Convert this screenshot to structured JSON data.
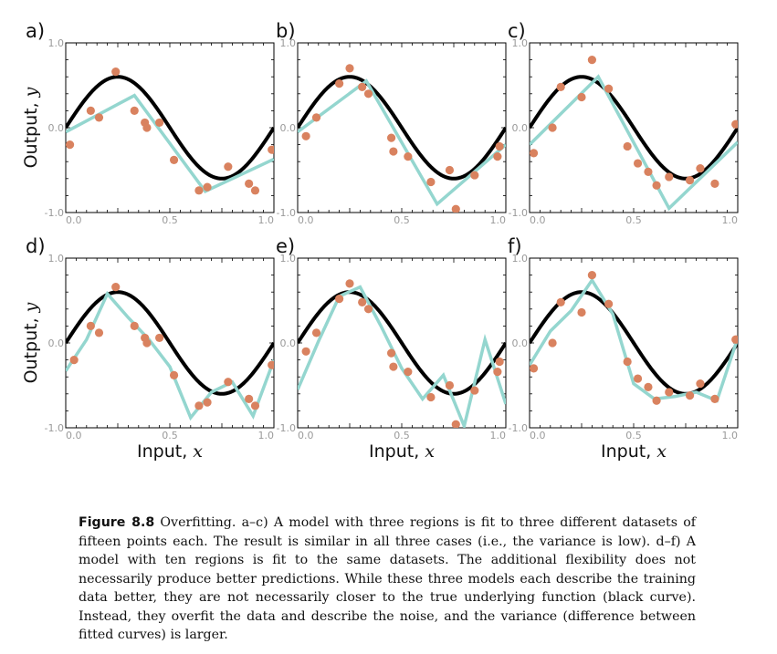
{
  "figure": {
    "panel_labels": [
      "a)",
      "b)",
      "c)",
      "d)",
      "e)",
      "f)"
    ],
    "y_axis_label": "Output,",
    "y_axis_var": "y",
    "x_axis_label": "Input,",
    "x_axis_var": "x",
    "x_ticks": [
      "0.0",
      "0.5",
      "1.0"
    ],
    "y_ticks": [
      "1.0",
      "0.0",
      "-1.0"
    ],
    "colors": {
      "data": "#d9825f",
      "fit": "#94d6cf",
      "true": "#000000"
    }
  },
  "chart_data": [
    {
      "type": "scatter",
      "panel": "a)",
      "xlim": [
        0,
        1
      ],
      "ylim": [
        -1,
        1
      ],
      "true_function": "0.6*sin(2*pi*x)",
      "points": [
        [
          0.02,
          -0.2
        ],
        [
          0.12,
          0.2
        ],
        [
          0.16,
          0.12
        ],
        [
          0.24,
          0.66
        ],
        [
          0.33,
          0.2
        ],
        [
          0.38,
          0.06
        ],
        [
          0.39,
          0.0
        ],
        [
          0.45,
          0.06
        ],
        [
          0.52,
          -0.38
        ],
        [
          0.64,
          -0.74
        ],
        [
          0.68,
          -0.7
        ],
        [
          0.78,
          -0.46
        ],
        [
          0.88,
          -0.66
        ],
        [
          0.91,
          -0.74
        ],
        [
          0.99,
          -0.26
        ]
      ],
      "fit": [
        [
          0,
          -0.05
        ],
        [
          0.33,
          0.38
        ],
        [
          0.67,
          -0.75
        ],
        [
          1,
          -0.37
        ]
      ]
    },
    {
      "type": "scatter",
      "panel": "b)",
      "xlim": [
        0,
        1
      ],
      "ylim": [
        -1,
        1
      ],
      "true_function": "0.6*sin(2*pi*x)",
      "points": [
        [
          0.04,
          -0.1
        ],
        [
          0.09,
          0.12
        ],
        [
          0.2,
          0.52
        ],
        [
          0.25,
          0.7
        ],
        [
          0.31,
          0.48
        ],
        [
          0.34,
          0.4
        ],
        [
          0.45,
          -0.12
        ],
        [
          0.46,
          -0.28
        ],
        [
          0.53,
          -0.34
        ],
        [
          0.64,
          -0.64
        ],
        [
          0.73,
          -0.5
        ],
        [
          0.76,
          -0.96
        ],
        [
          0.85,
          -0.56
        ],
        [
          0.96,
          -0.34
        ],
        [
          0.97,
          -0.22
        ]
      ],
      "fit": [
        [
          0,
          -0.05
        ],
        [
          0.33,
          0.55
        ],
        [
          0.67,
          -0.9
        ],
        [
          1,
          -0.2
        ]
      ]
    },
    {
      "type": "scatter",
      "panel": "c)",
      "xlim": [
        0,
        1
      ],
      "ylim": [
        -1,
        1
      ],
      "true_function": "0.6*sin(2*pi*x)",
      "points": [
        [
          0.02,
          -0.3
        ],
        [
          0.11,
          0.0
        ],
        [
          0.15,
          0.48
        ],
        [
          0.25,
          0.36
        ],
        [
          0.3,
          0.8
        ],
        [
          0.38,
          0.46
        ],
        [
          0.47,
          -0.22
        ],
        [
          0.52,
          -0.42
        ],
        [
          0.57,
          -0.52
        ],
        [
          0.61,
          -0.68
        ],
        [
          0.67,
          -0.58
        ],
        [
          0.77,
          -0.62
        ],
        [
          0.82,
          -0.48
        ],
        [
          0.89,
          -0.66
        ],
        [
          0.99,
          0.04
        ]
      ],
      "fit": [
        [
          0,
          -0.2
        ],
        [
          0.33,
          0.6
        ],
        [
          0.67,
          -0.95
        ],
        [
          1,
          -0.17
        ]
      ]
    },
    {
      "type": "scatter",
      "panel": "d)",
      "xlim": [
        0,
        1
      ],
      "ylim": [
        -1,
        1
      ],
      "true_function": "0.6*sin(2*pi*x)",
      "points": [
        [
          0.04,
          -0.2
        ],
        [
          0.12,
          0.2
        ],
        [
          0.16,
          0.12
        ],
        [
          0.24,
          0.66
        ],
        [
          0.33,
          0.2
        ],
        [
          0.38,
          0.06
        ],
        [
          0.39,
          0.0
        ],
        [
          0.45,
          0.06
        ],
        [
          0.52,
          -0.38
        ],
        [
          0.64,
          -0.74
        ],
        [
          0.68,
          -0.7
        ],
        [
          0.78,
          -0.46
        ],
        [
          0.88,
          -0.66
        ],
        [
          0.91,
          -0.74
        ],
        [
          0.99,
          -0.26
        ]
      ],
      "fit": [
        [
          0,
          -0.33
        ],
        [
          0.1,
          0.04
        ],
        [
          0.2,
          0.58
        ],
        [
          0.3,
          0.3
        ],
        [
          0.4,
          0.04
        ],
        [
          0.5,
          -0.28
        ],
        [
          0.6,
          -0.88
        ],
        [
          0.7,
          -0.58
        ],
        [
          0.8,
          -0.46
        ],
        [
          0.9,
          -0.86
        ],
        [
          1,
          -0.2
        ]
      ]
    },
    {
      "type": "scatter",
      "panel": "e)",
      "xlim": [
        0,
        1
      ],
      "ylim": [
        -1,
        1
      ],
      "true_function": "0.6*sin(2*pi*x)",
      "points": [
        [
          0.04,
          -0.1
        ],
        [
          0.09,
          0.12
        ],
        [
          0.2,
          0.52
        ],
        [
          0.25,
          0.7
        ],
        [
          0.31,
          0.48
        ],
        [
          0.34,
          0.4
        ],
        [
          0.45,
          -0.12
        ],
        [
          0.46,
          -0.28
        ],
        [
          0.53,
          -0.34
        ],
        [
          0.64,
          -0.64
        ],
        [
          0.73,
          -0.5
        ],
        [
          0.76,
          -0.96
        ],
        [
          0.85,
          -0.56
        ],
        [
          0.96,
          -0.34
        ],
        [
          0.97,
          -0.22
        ]
      ],
      "fit": [
        [
          0,
          -0.55
        ],
        [
          0.1,
          0.02
        ],
        [
          0.2,
          0.55
        ],
        [
          0.3,
          0.66
        ],
        [
          0.4,
          0.2
        ],
        [
          0.5,
          -0.3
        ],
        [
          0.6,
          -0.66
        ],
        [
          0.7,
          -0.38
        ],
        [
          0.8,
          -0.98
        ],
        [
          0.9,
          0.04
        ],
        [
          1,
          -0.72
        ]
      ]
    },
    {
      "type": "scatter",
      "panel": "f)",
      "xlim": [
        0,
        1
      ],
      "ylim": [
        -1,
        1
      ],
      "true_function": "0.6*sin(2*pi*x)",
      "points": [
        [
          0.02,
          -0.3
        ],
        [
          0.11,
          0.0
        ],
        [
          0.15,
          0.48
        ],
        [
          0.25,
          0.36
        ],
        [
          0.3,
          0.8
        ],
        [
          0.38,
          0.46
        ],
        [
          0.47,
          -0.22
        ],
        [
          0.52,
          -0.42
        ],
        [
          0.57,
          -0.52
        ],
        [
          0.61,
          -0.68
        ],
        [
          0.67,
          -0.58
        ],
        [
          0.77,
          -0.62
        ],
        [
          0.82,
          -0.48
        ],
        [
          0.89,
          -0.66
        ],
        [
          0.99,
          0.04
        ]
      ],
      "fit": [
        [
          0,
          -0.26
        ],
        [
          0.1,
          0.14
        ],
        [
          0.2,
          0.38
        ],
        [
          0.3,
          0.74
        ],
        [
          0.4,
          0.34
        ],
        [
          0.5,
          -0.48
        ],
        [
          0.6,
          -0.66
        ],
        [
          0.7,
          -0.63
        ],
        [
          0.8,
          -0.58
        ],
        [
          0.9,
          -0.68
        ],
        [
          1,
          0.06
        ]
      ]
    }
  ],
  "caption": {
    "figure_number": "Figure 8.8",
    "text": "Overfitting. a–c) A model with three regions is fit to three different datasets of fifteen points each. The result is similar in all three cases (i.e., the variance is low). d–f) A model with ten regions is fit to the same datasets. The additional flexibility does not necessarily produce better predictions. While these three models each describe the training data better, they are not necessarily closer to the true underlying function (black curve). Instead, they overfit the data and describe the noise, and the variance (difference between fitted curves) is larger."
  }
}
